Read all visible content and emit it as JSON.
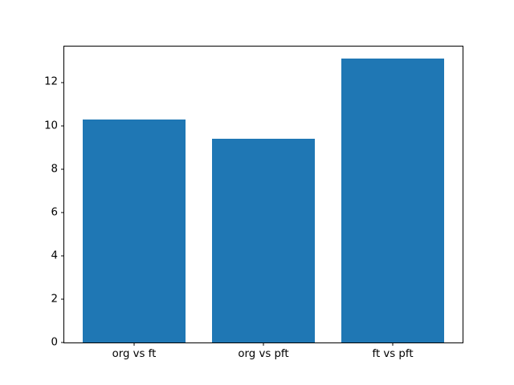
{
  "figure": {
    "background": "#ffffff",
    "spine_color": "#000000",
    "tick_color": "#000000",
    "bar_color": "#1f77b4"
  },
  "chart_data": {
    "type": "bar",
    "title": "",
    "xlabel": "",
    "ylabel": "",
    "categories": [
      "org vs ft",
      "org vs pft",
      "ft vs pft"
    ],
    "values": [
      10.3,
      9.4,
      13.1
    ],
    "bar_width": 0.8,
    "xlim": [
      -0.54,
      2.54
    ],
    "ylim": [
      0,
      13.67
    ],
    "yticks": [
      0,
      2,
      4,
      6,
      8,
      10,
      12
    ],
    "grid": false,
    "legend": null
  }
}
